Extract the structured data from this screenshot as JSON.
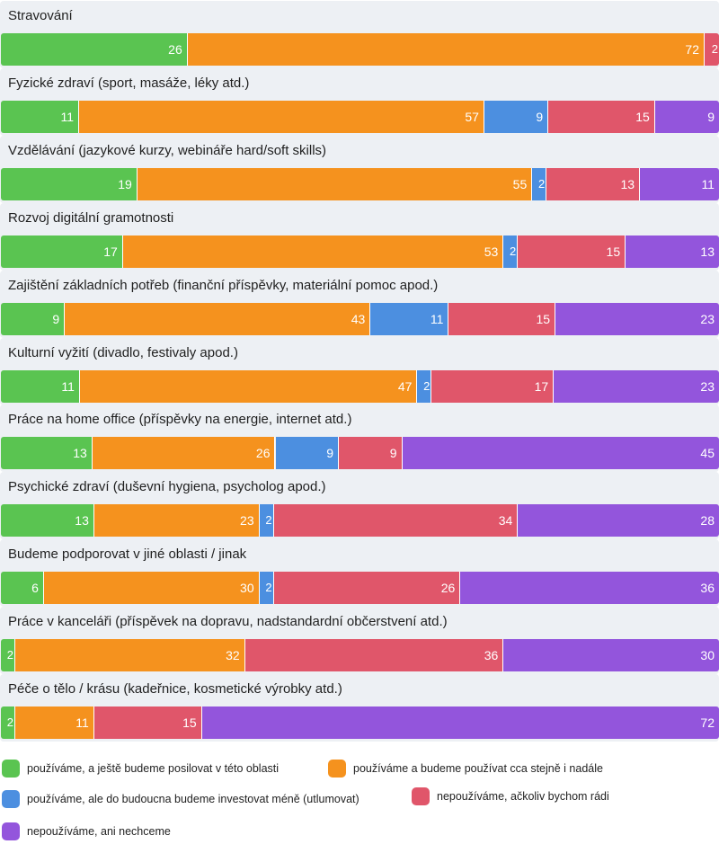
{
  "chart_data": {
    "type": "bar",
    "orientation": "horizontal",
    "stacked": true,
    "percent_stacked": true,
    "xlim": [
      0,
      100
    ],
    "grid": false,
    "legend_position": "bottom",
    "series": [
      {
        "name": "používáme, a ještě budeme posilovat v této oblasti",
        "color": "#5ac451"
      },
      {
        "name": "používáme a budeme používat cca stejně i nadále",
        "color": "#f5921e"
      },
      {
        "name": "používáme, ale do budoucna budeme investovat méně (utlumovat)",
        "color": "#4c8fe0"
      },
      {
        "name": "nepoužíváme, ačkoliv bychom rádi",
        "color": "#e0566a"
      },
      {
        "name": "nepoužíváme, ani nechceme",
        "color": "#9355dc"
      }
    ],
    "categories": [
      {
        "label": "Stravování",
        "values": [
          26,
          72,
          0,
          2,
          0
        ]
      },
      {
        "label": "Fyzické zdraví (sport, masáže, léky atd.)",
        "values": [
          11,
          57,
          9,
          15,
          9
        ]
      },
      {
        "label": "Vzdělávání (jazykové kurzy, webináře hard/soft skills)",
        "values": [
          19,
          55,
          2,
          13,
          11
        ]
      },
      {
        "label": "Rozvoj digitální gramotnosti",
        "values": [
          17,
          53,
          2,
          15,
          13
        ]
      },
      {
        "label": "Zajištění základních potřeb (finanční příspěvky, materiální pomoc apod.)",
        "values": [
          9,
          43,
          11,
          15,
          23
        ]
      },
      {
        "label": "Kulturní vyžití (divadlo, festivaly apod.)",
        "values": [
          11,
          47,
          2,
          17,
          23
        ]
      },
      {
        "label": "Práce na home office (příspěvky na energie, internet atd.)",
        "values": [
          13,
          26,
          9,
          9,
          45
        ]
      },
      {
        "label": "Psychické zdraví (duševní hygiena, psycholog apod.)",
        "values": [
          13,
          23,
          2,
          34,
          28
        ]
      },
      {
        "label": "Budeme podporovat v jiné oblasti / jinak",
        "values": [
          6,
          30,
          2,
          26,
          36
        ]
      },
      {
        "label": "Práce v kanceláři (příspěvek na dopravu, nadstandardní občerstvení atd.)",
        "values": [
          2,
          32,
          0,
          36,
          30
        ]
      },
      {
        "label": "Péče o tělo / krásu (kadeřnice, kosmetické výrobky atd.)",
        "values": [
          2,
          11,
          0,
          15,
          72
        ]
      }
    ]
  }
}
